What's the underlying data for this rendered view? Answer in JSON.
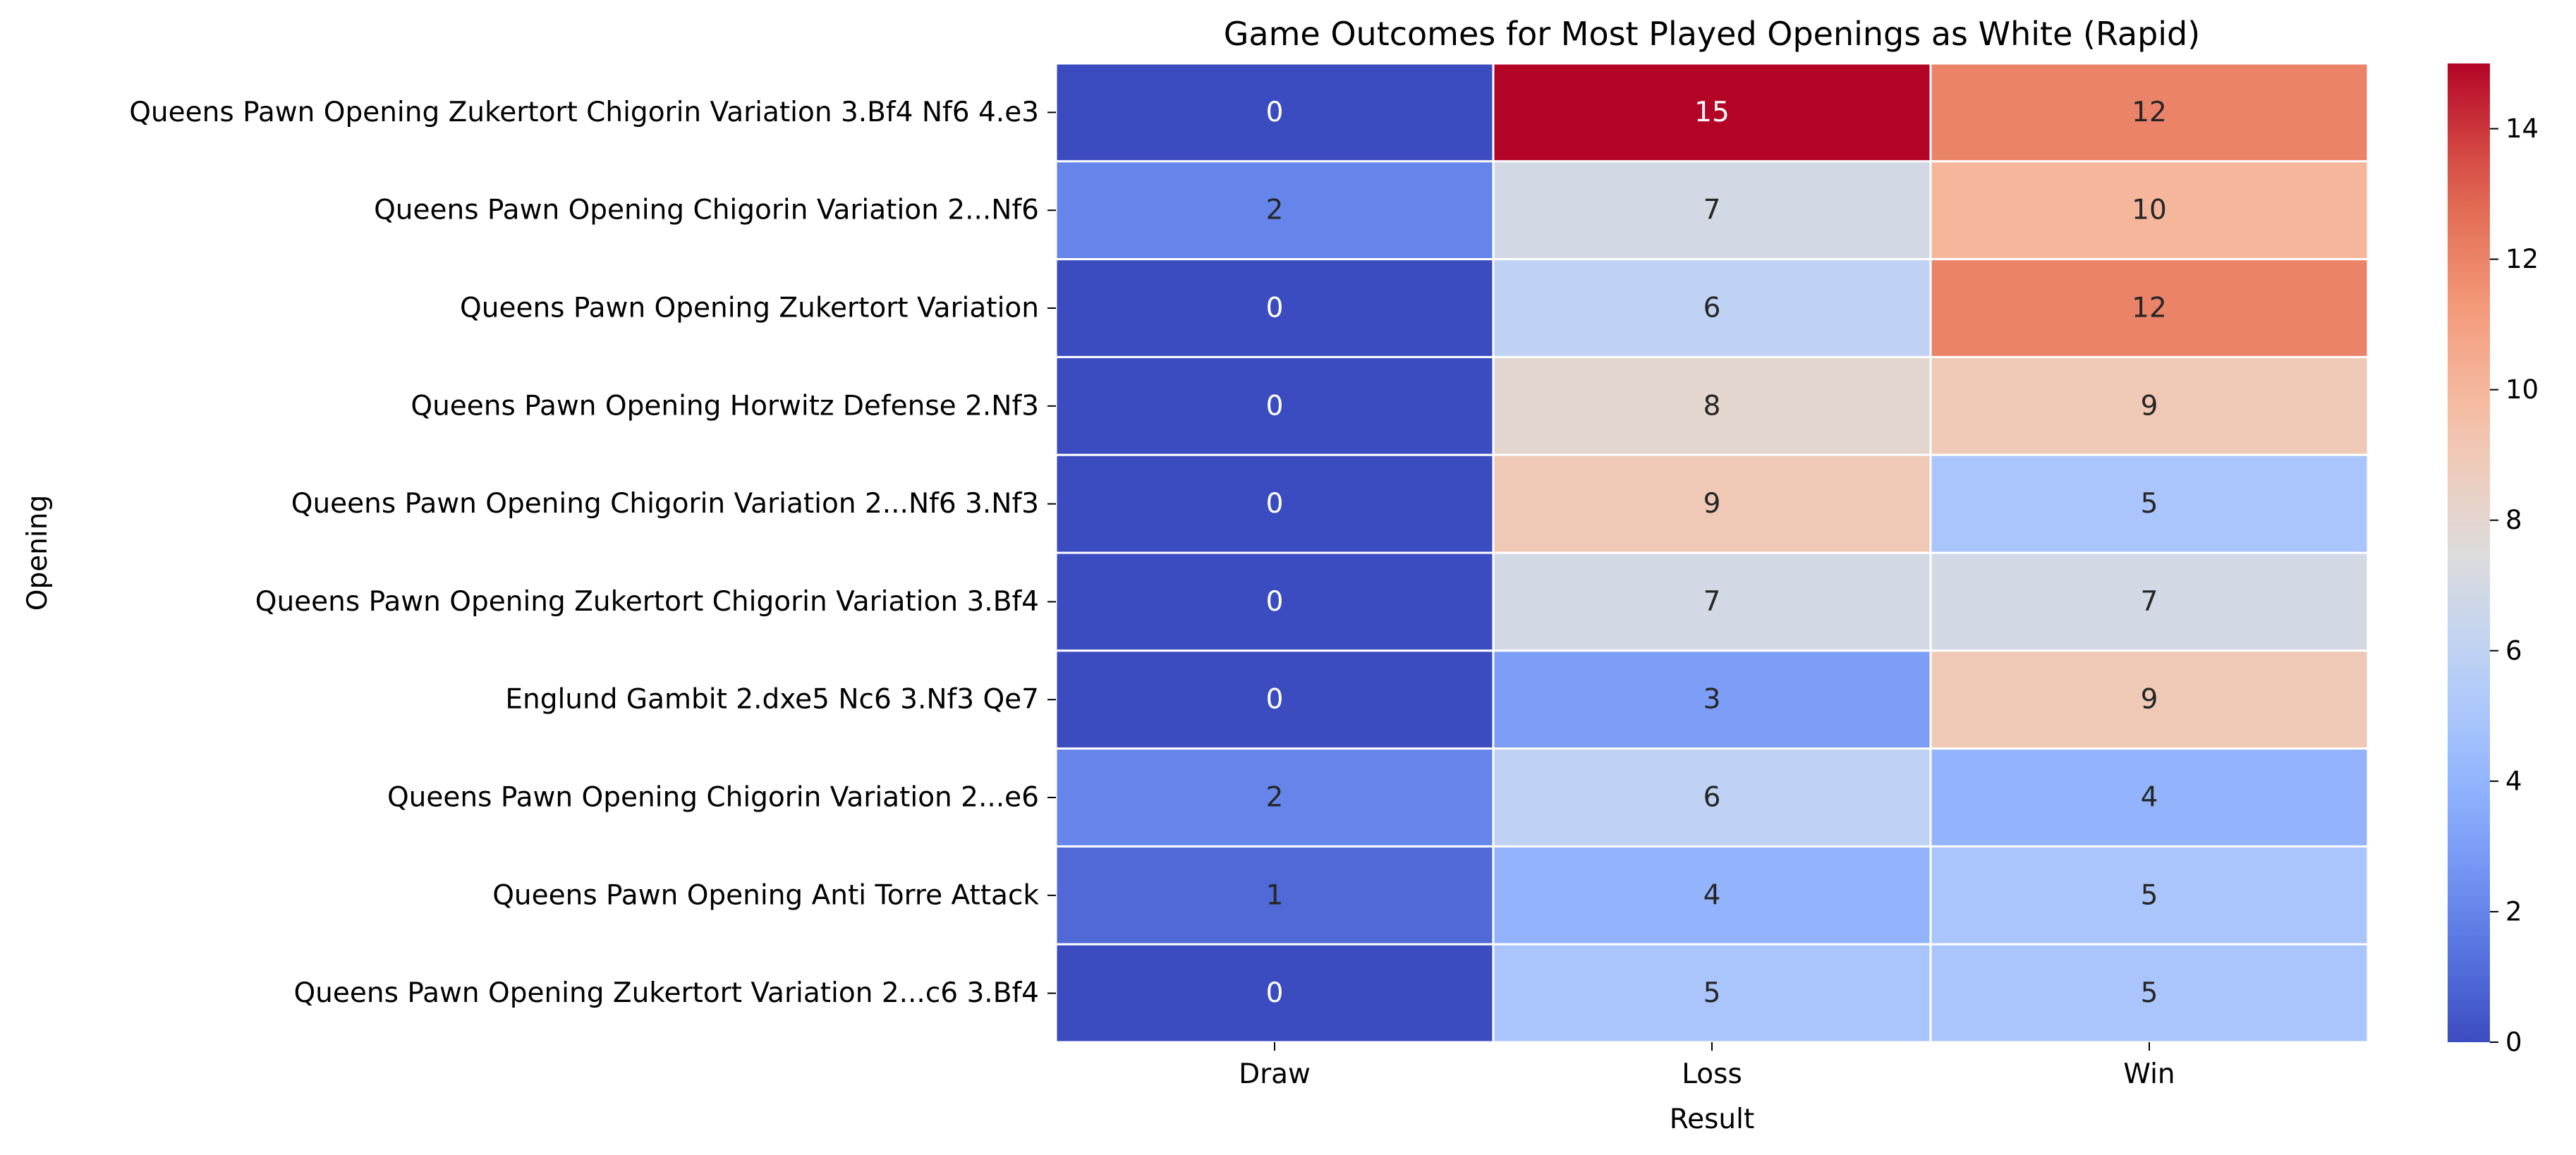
{
  "chart_data": {
    "type": "heatmap",
    "title": "Game Outcomes for Most Played Openings as White (Rapid)",
    "xlabel": "Result",
    "ylabel": "Opening",
    "columns": [
      "Draw",
      "Loss",
      "Win"
    ],
    "rows": [
      "Queens Pawn Opening Zukertort Chigorin Variation 3.Bf4 Nf6 4.e3",
      "Queens Pawn Opening Chigorin Variation 2...Nf6",
      "Queens Pawn Opening Zukertort Variation",
      "Queens Pawn Opening Horwitz Defense 2.Nf3",
      "Queens Pawn Opening Chigorin Variation 2...Nf6 3.Nf3",
      "Queens Pawn Opening Zukertort Chigorin Variation 3.Bf4",
      "Englund Gambit 2.dxe5 Nc6 3.Nf3 Qe7",
      "Queens Pawn Opening Chigorin Variation 2...e6",
      "Queens Pawn Opening Anti Torre Attack",
      "Queens Pawn Opening Zukertort Variation 2...c6 3.Bf4"
    ],
    "values": [
      [
        0,
        15,
        12
      ],
      [
        2,
        7,
        10
      ],
      [
        0,
        6,
        12
      ],
      [
        0,
        8,
        9
      ],
      [
        0,
        9,
        5
      ],
      [
        0,
        7,
        7
      ],
      [
        0,
        3,
        9
      ],
      [
        2,
        6,
        4
      ],
      [
        1,
        4,
        5
      ],
      [
        0,
        5,
        5
      ]
    ],
    "colormap": "coolwarm",
    "colorbar": {
      "range": [
        0,
        15
      ],
      "ticks": [
        0,
        2,
        4,
        6,
        8,
        10,
        12,
        14
      ]
    },
    "grid_line_color": "#ffffff"
  }
}
